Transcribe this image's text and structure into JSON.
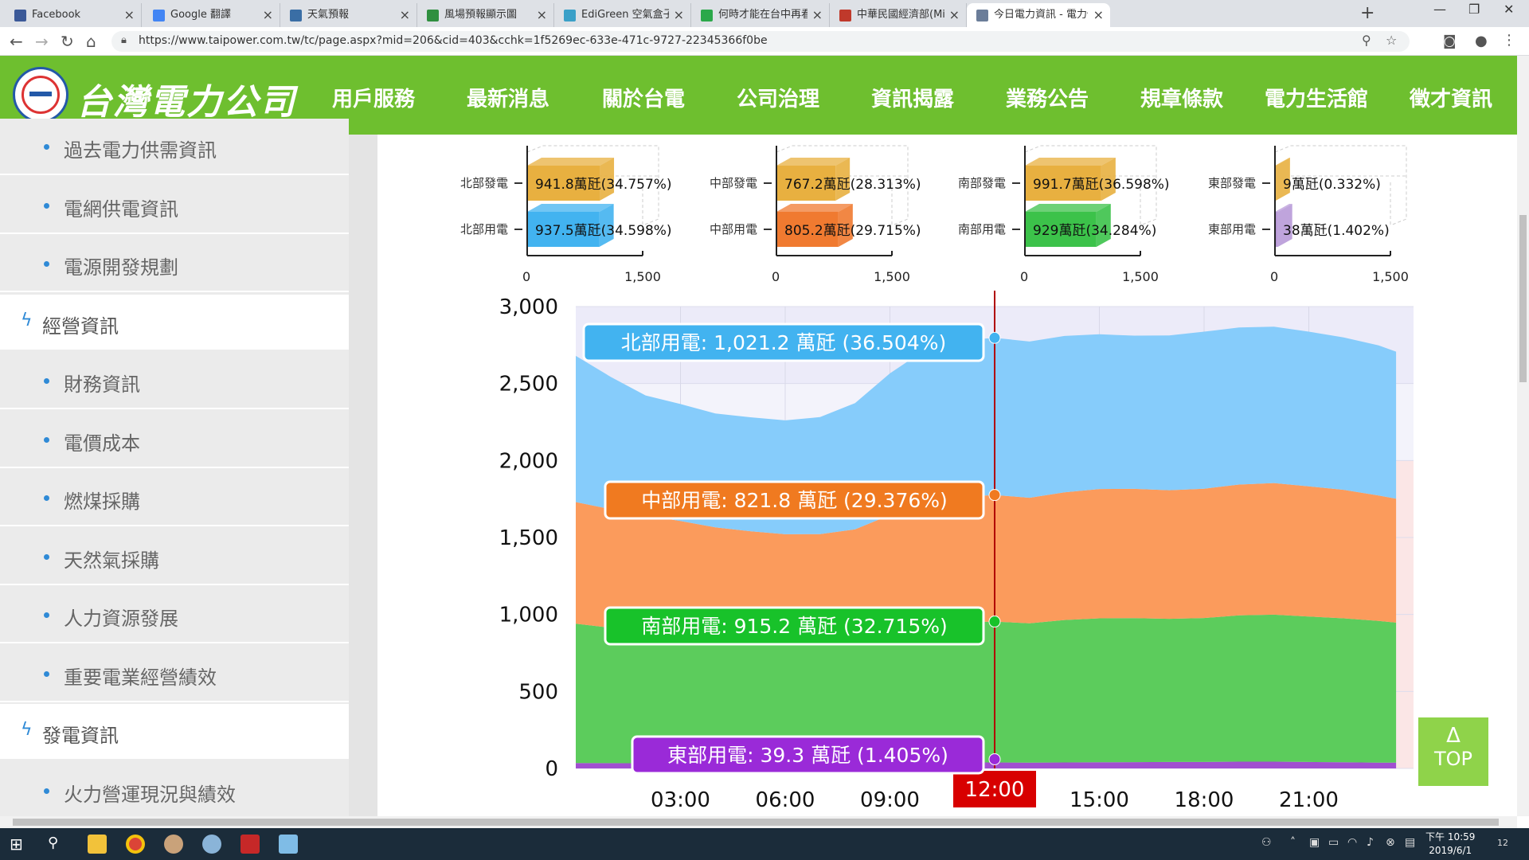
{
  "browser": {
    "tabs": [
      {
        "title": "Facebook",
        "color": "#3b5998"
      },
      {
        "title": "Google 翻譯",
        "color": "#4285f4"
      },
      {
        "title": "天氣預報",
        "color": "#3a6ea5"
      },
      {
        "title": "風場預報顯示圖",
        "color": "#2f8f3f"
      },
      {
        "title": "EdiGreen 空氣盒子",
        "color": "#3aa0c8"
      },
      {
        "title": "何時才能在台中再看到這樣",
        "color": "#2ba84a"
      },
      {
        "title": "中華民國經濟部(Ministry of",
        "color": "#c0392b"
      },
      {
        "title": "今日電力資訊 - 電力供需資",
        "color": "#6b7d99"
      }
    ],
    "new_tab_icon": "plus-icon",
    "url": "https://www.taipower.com.tw/tc/page.aspx?mid=206&cid=403&cchk=1f5269ec-633e-471c-9727-22345366f0be"
  },
  "site": {
    "logo_text": "台灣電力公司",
    "nav": [
      "用戶服務",
      "最新消息",
      "關於台電",
      "公司治理",
      "資訊揭露",
      "業務公告",
      "規章條款",
      "電力生活館",
      "徵才資訊"
    ]
  },
  "sidebar": {
    "items": [
      {
        "type": "sub",
        "label": "過去電力供需資訊"
      },
      {
        "type": "sub",
        "label": "電網供電資訊"
      },
      {
        "type": "sub",
        "label": "電源開發規劃"
      },
      {
        "type": "cat",
        "label": "經營資訊"
      },
      {
        "type": "sub",
        "label": "財務資訊"
      },
      {
        "type": "sub",
        "label": "電價成本"
      },
      {
        "type": "sub",
        "label": "燃煤採購"
      },
      {
        "type": "sub",
        "label": "天然氣採購"
      },
      {
        "type": "sub",
        "label": "人力資源發展"
      },
      {
        "type": "sub",
        "label": "重要電業經營績效"
      },
      {
        "type": "cat",
        "label": "發電資訊"
      },
      {
        "type": "sub",
        "label": "火力營運現況與績效"
      }
    ]
  },
  "chart_data": [
    {
      "type": "bar",
      "subtype": "horizontal-3d-mini",
      "xlim": [
        0,
        1500
      ],
      "ticks": [
        "0",
        "1,500"
      ],
      "panels": [
        {
          "gen_label": "北部發電",
          "gen_value": 941.8,
          "gen_text": "941.8萬瓩(34.757%)",
          "use_label": "北部用電",
          "use_value": 937.5,
          "use_text": "937.5萬瓩(34.598%)",
          "use_color": "#42b3f0"
        },
        {
          "gen_label": "中部發電",
          "gen_value": 767.2,
          "gen_text": "767.2萬瓩(28.313%)",
          "use_label": "中部用電",
          "use_value": 805.2,
          "use_text": "805.2萬瓩(29.715%)",
          "use_color": "#f07a30"
        },
        {
          "gen_label": "南部發電",
          "gen_value": 991.7,
          "gen_text": "991.7萬瓩(36.598%)",
          "use_label": "南部用電",
          "use_value": 929,
          "use_text": "929萬瓩(34.284%)",
          "use_color": "#3cc24a"
        },
        {
          "gen_label": "東部發電",
          "gen_value": 9,
          "gen_text": "9萬瓩(0.332%)",
          "use_label": "東部用電",
          "use_value": 38,
          "use_text": "38萬瓩(1.402%)",
          "use_color": "#b89ad8"
        }
      ],
      "gen_color": "#e8b040"
    },
    {
      "type": "area",
      "stacked": true,
      "ylim": [
        0,
        3000
      ],
      "yticks": [
        "0",
        "500",
        "1,000",
        "1,500",
        "2,000",
        "2,500",
        "3,000"
      ],
      "xtick_labels": [
        "03:00",
        "06:00",
        "09:00",
        "12:00",
        "15:00",
        "18:00",
        "21:00"
      ],
      "x_hours": [
        0,
        1,
        2,
        3,
        4,
        5,
        6,
        7,
        8,
        9,
        10,
        11,
        12,
        13,
        14,
        15,
        16,
        17,
        18,
        19,
        20,
        21,
        22,
        23,
        23.5
      ],
      "cursor_hour": 12,
      "cursor_label": "12:00",
      "series": [
        {
          "name": "東部用電",
          "color": "#a14fd0",
          "values": [
            35,
            34,
            33,
            32,
            31,
            31,
            31,
            32,
            33,
            36,
            38,
            39,
            39,
            38,
            39,
            40,
            41,
            42,
            42,
            44,
            44,
            42,
            40,
            38,
            37
          ]
        },
        {
          "name": "南部用電",
          "color": "#5ccc5c",
          "values": [
            905,
            880,
            860,
            840,
            820,
            810,
            800,
            800,
            810,
            850,
            890,
            910,
            915,
            905,
            925,
            935,
            935,
            930,
            935,
            950,
            955,
            945,
            935,
            920,
            910
          ]
        },
        {
          "name": "中部用電",
          "color": "#fb9b5c",
          "values": [
            790,
            770,
            750,
            735,
            715,
            700,
            690,
            690,
            710,
            760,
            800,
            815,
            822,
            815,
            830,
            840,
            840,
            835,
            840,
            850,
            855,
            845,
            835,
            815,
            805
          ]
        },
        {
          "name": "北部用電",
          "color": "#86ccfb",
          "values": [
            950,
            860,
            780,
            760,
            740,
            740,
            740,
            760,
            820,
            920,
            990,
            1015,
            1021,
            1015,
            1015,
            1005,
            995,
            1005,
            1020,
            1020,
            1015,
            1005,
            990,
            975,
            955
          ]
        }
      ],
      "tooltips": [
        {
          "series": "北部用電",
          "text": "北部用電: 1,021.2 萬瓩 (36.504%)",
          "color": "#42b3f0"
        },
        {
          "series": "中部用電",
          "text": "中部用電: 821.8 萬瓩 (29.376%)",
          "color": "#f07a20"
        },
        {
          "series": "南部用電",
          "text": "南部用電: 915.2 萬瓩 (32.715%)",
          "color": "#18c22a"
        },
        {
          "series": "東部用電",
          "text": "東部用電: 39.3 萬瓩 (1.405%)",
          "color": "#9a2ad8"
        }
      ]
    }
  ],
  "top_button": {
    "arrow": "Δ",
    "label": "TOP"
  },
  "taskbar": {
    "clock_period": "下午 10:59",
    "clock_date": "2019/6/1",
    "notification_count": "12"
  }
}
